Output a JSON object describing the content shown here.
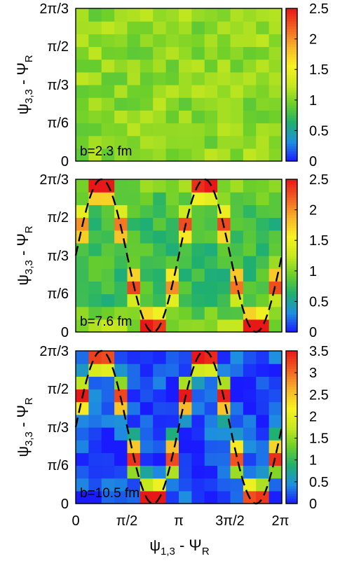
{
  "chart_data": [
    {
      "type": "heatmap",
      "panel_label": "b=2.3 fm",
      "ylabel_main": "ψ",
      "ylabel_sub": "3,3",
      "ylabel_mid": " - Ψ",
      "ylabel_sub2": "R",
      "y_tick_labels": [
        "0",
        "π/6",
        "π/3",
        "π/2",
        "2π/3"
      ],
      "colorbar_range": [
        0,
        2.5
      ],
      "colorbar_tick_labels": [
        "0",
        "0.5",
        "1",
        "1.5",
        "2",
        "2.5"
      ],
      "xlim_rad": [
        0,
        6.2832
      ],
      "ylim_rad": [
        0,
        2.0944
      ],
      "pattern": "uniform",
      "mean_value": 1.05,
      "dashed_curve": false
    },
    {
      "type": "heatmap",
      "panel_label": "b=7.6 fm",
      "ylabel_main": "ψ",
      "ylabel_sub": "3,3",
      "ylabel_mid": " - Ψ",
      "ylabel_sub2": "R",
      "y_tick_labels": [
        "0",
        "π/6",
        "π/3",
        "π/2",
        "2π/3"
      ],
      "colorbar_range": [
        0,
        2.5
      ],
      "colorbar_tick_labels": [
        "0",
        "0.5",
        "1",
        "1.5",
        "2",
        "2.5"
      ],
      "xlim_rad": [
        0,
        6.2832
      ],
      "ylim_rad": [
        0,
        2.0944
      ],
      "pattern": "ridge",
      "base_value": 0.75,
      "peak_value": 2.2,
      "dashed_curve": true
    },
    {
      "type": "heatmap",
      "panel_label": "b=10.5 fm",
      "ylabel_main": "ψ",
      "ylabel_sub": "3,3",
      "ylabel_mid": " - Ψ",
      "ylabel_sub2": "R",
      "y_tick_labels": [
        "0",
        "π/6",
        "π/3",
        "π/2",
        "2π/3"
      ],
      "colorbar_range": [
        0,
        3.5
      ],
      "colorbar_tick_labels": [
        "0",
        "0.5",
        "1",
        "1.5",
        "2",
        "2.5",
        "3",
        "3.5"
      ],
      "xlim_rad": [
        0,
        6.2832
      ],
      "ylim_rad": [
        0,
        2.0944
      ],
      "pattern": "ridge",
      "base_value": 0.2,
      "peak_value": 3.4,
      "dashed_curve": true
    }
  ],
  "x_axis": {
    "tick_labels": [
      "0",
      "π/2",
      "π",
      "3π/2",
      "2π"
    ],
    "label_main": "ψ",
    "label_sub": "1,3",
    "label_mid": " - Ψ",
    "label_sub2": "R"
  },
  "colormap": [
    "#1a1aff",
    "#1e8fe0",
    "#1fb070",
    "#6ccf2a",
    "#c8e81e",
    "#f7f222",
    "#f7b52a",
    "#f26222",
    "#e81818"
  ]
}
